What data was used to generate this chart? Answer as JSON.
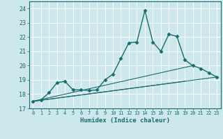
{
  "title": "",
  "xlabel": "Humidex (Indice chaleur)",
  "ylabel": "",
  "background_color": "#cce8ec",
  "grid_color": "#ffffff",
  "line_color": "#1a6b6b",
  "xlim": [
    -0.5,
    23.5
  ],
  "ylim": [
    17,
    24.5
  ],
  "yticks": [
    17,
    18,
    19,
    20,
    21,
    22,
    23,
    24
  ],
  "xticks": [
    0,
    1,
    2,
    3,
    4,
    5,
    6,
    7,
    8,
    9,
    10,
    11,
    12,
    13,
    14,
    15,
    16,
    17,
    18,
    19,
    20,
    21,
    22,
    23
  ],
  "main_series": {
    "x": [
      0,
      1,
      2,
      3,
      4,
      5,
      6,
      7,
      8,
      9,
      10,
      11,
      12,
      13,
      14,
      15,
      16,
      17,
      18,
      19,
      20,
      21,
      22,
      23
    ],
    "y": [
      17.5,
      17.6,
      18.1,
      18.8,
      18.9,
      18.3,
      18.3,
      18.25,
      18.3,
      19.0,
      19.4,
      20.5,
      21.6,
      21.65,
      23.85,
      21.65,
      21.0,
      22.2,
      22.05,
      20.4,
      20.0,
      19.8,
      19.5,
      19.2
    ],
    "marker": "D",
    "marker_size": 2.5,
    "linewidth": 1.0
  },
  "trend_lines": [
    {
      "x0": 0,
      "y0": 17.5,
      "x1": 23,
      "y1": 19.2
    },
    {
      "x0": 0,
      "y0": 17.5,
      "x1": 20,
      "y1": 20.0
    },
    {
      "x0": 0,
      "y0": 17.5,
      "x1": 19,
      "y1": 18.9
    }
  ],
  "figsize": [
    3.2,
    2.0
  ],
  "dpi": 100,
  "font_size_xlabel": 6.5,
  "font_size_xtick": 5.0,
  "font_size_ytick": 6.0
}
